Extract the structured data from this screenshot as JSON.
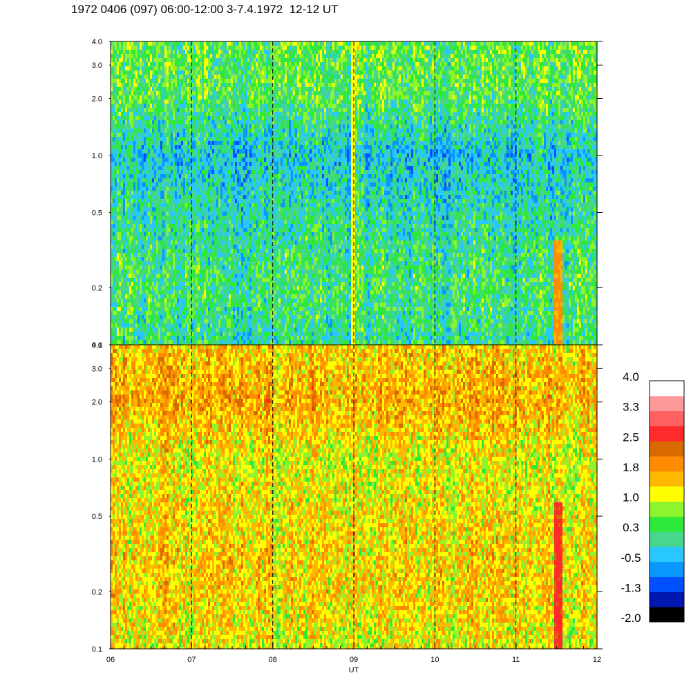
{
  "title": "1972 0406 (097) 06:00-12:00 3-7.4.1972  12-12 UT",
  "chart_data": {
    "type": "heatmap",
    "xlabel": "UT",
    "x_ticks": [
      "06",
      "07",
      "08",
      "09",
      "10",
      "11",
      "12"
    ],
    "x_range": [
      6,
      12
    ],
    "day_boundaries_dashed": [
      7,
      8,
      9,
      10,
      11
    ],
    "panels": [
      {
        "name": "upper",
        "y_scale": "log",
        "y_range": [
          0.1,
          4.0
        ],
        "y_ticks": [
          {
            "value": 0.1,
            "label": "0.1"
          },
          {
            "value": 0.2,
            "label": "0.2"
          },
          {
            "value": 0.5,
            "label": "0.5"
          },
          {
            "value": 1.0,
            "label": "1.0"
          },
          {
            "value": 2.0,
            "label": "2.0"
          },
          {
            "value": 3.0,
            "label": "3.0"
          },
          {
            "value": 4.0,
            "label": "4.0"
          }
        ],
        "profile": [
          {
            "y": 0.1,
            "level": 0.1
          },
          {
            "y": 0.2,
            "level": 0.3
          },
          {
            "y": 0.5,
            "level": 0.0
          },
          {
            "y": 1.0,
            "level": -0.3
          },
          {
            "y": 2.0,
            "level": 0.4
          },
          {
            "y": 4.0,
            "level": 0.5
          }
        ],
        "features": [
          {
            "x": 11.52,
            "width": 0.1,
            "level": 1.8,
            "y_max": 0.35
          },
          {
            "x": 9.0,
            "width": 0.05,
            "level": 1.2,
            "y_max": 4.0
          }
        ]
      },
      {
        "name": "lower",
        "y_scale": "log",
        "y_range": [
          0.1,
          4.0
        ],
        "y_ticks": [
          {
            "value": 0.1,
            "label": "0.1"
          },
          {
            "value": 0.2,
            "label": "0.2"
          },
          {
            "value": 0.5,
            "label": "0.5"
          },
          {
            "value": 1.0,
            "label": "1.0"
          },
          {
            "value": 2.0,
            "label": "2.0"
          },
          {
            "value": 3.0,
            "label": "3.0"
          },
          {
            "value": 4.0,
            "label": "4.0"
          }
        ],
        "profile": [
          {
            "y": 0.1,
            "level": 1.1
          },
          {
            "y": 0.2,
            "level": 1.4
          },
          {
            "y": 0.5,
            "level": 1.3
          },
          {
            "y": 1.0,
            "level": 1.1
          },
          {
            "y": 2.0,
            "level": 1.7
          },
          {
            "y": 4.0,
            "level": 1.4
          }
        ],
        "features": [
          {
            "x": 11.52,
            "width": 0.1,
            "level": 2.6,
            "y_max": 0.6
          }
        ]
      }
    ],
    "colorbar": {
      "labels": [
        "4.0",
        "3.3",
        "2.5",
        "1.8",
        "1.0",
        "0.3",
        "-0.5",
        "-1.3",
        "-2.0"
      ],
      "min": -2.0,
      "max": 4.0,
      "colors": [
        "#000000",
        "#0018b0",
        "#0050ff",
        "#0a96ff",
        "#28c8ff",
        "#46d68c",
        "#2ee83a",
        "#8ef42e",
        "#ffff00",
        "#ffb800",
        "#ff8c00",
        "#d86a00",
        "#ff2a2a",
        "#ff6060",
        "#ff9898",
        "#ffffff"
      ]
    }
  }
}
